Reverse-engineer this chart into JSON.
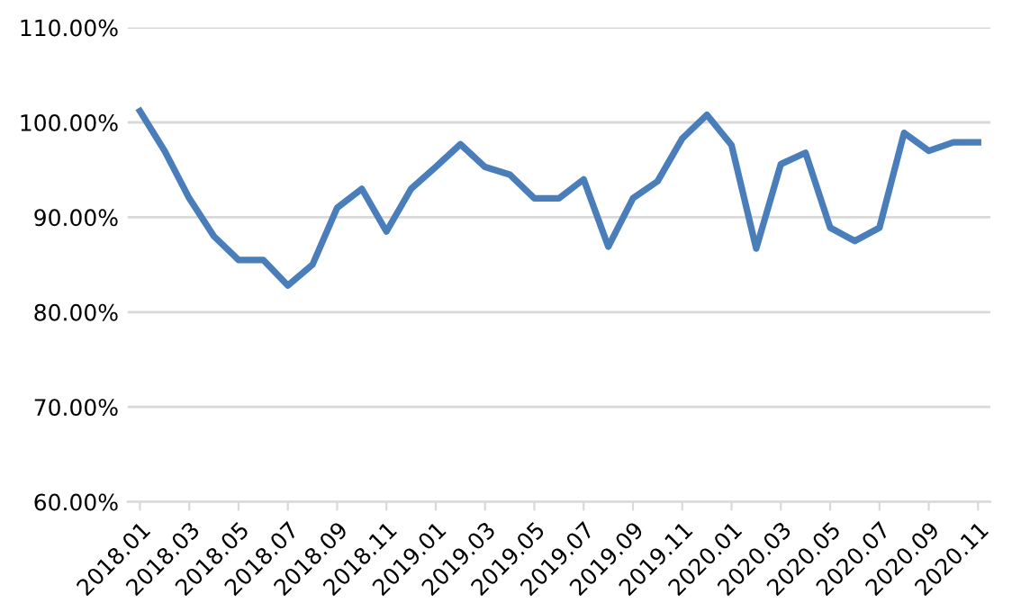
{
  "chart_data": {
    "type": "line",
    "categories": [
      "2018.01",
      null,
      "2018.03",
      null,
      "2018.05",
      null,
      "2018.07",
      null,
      "2018.09",
      null,
      "2018.11",
      null,
      "2019.01",
      null,
      "2019.03",
      null,
      "2019.05",
      null,
      "2019.07",
      null,
      "2019.09",
      null,
      "2019.11",
      null,
      "2020.01",
      null,
      "2020.03",
      null,
      "2020.05",
      null,
      "2020.07",
      null,
      "2020.09",
      null,
      "2020.11"
    ],
    "series": [
      {
        "color": "#4a7ebb",
        "values": [
          101.2,
          97.0,
          92.0,
          88.0,
          85.5,
          85.5,
          82.8,
          85.0,
          91.0,
          93.0,
          88.5,
          93.0,
          95.3,
          97.7,
          95.3,
          94.5,
          92.0,
          92.0,
          94.0,
          86.9,
          92.0,
          93.8,
          98.3,
          100.8,
          97.6,
          86.7,
          95.6,
          96.8,
          88.9,
          87.5,
          88.9,
          98.9,
          97.0,
          97.9,
          97.9
        ]
      }
    ],
    "ylim": [
      60,
      110
    ],
    "yticks": [
      {
        "value": 60,
        "label": "60.00%"
      },
      {
        "value": 70,
        "label": "70.00%"
      },
      {
        "value": 80,
        "label": "80.00%"
      },
      {
        "value": 90,
        "label": "90.00%"
      },
      {
        "value": 100,
        "label": "100.00%"
      },
      {
        "value": 110,
        "label": "110.00%"
      }
    ],
    "grid": "y",
    "marker": "none",
    "line_style": "solid"
  }
}
